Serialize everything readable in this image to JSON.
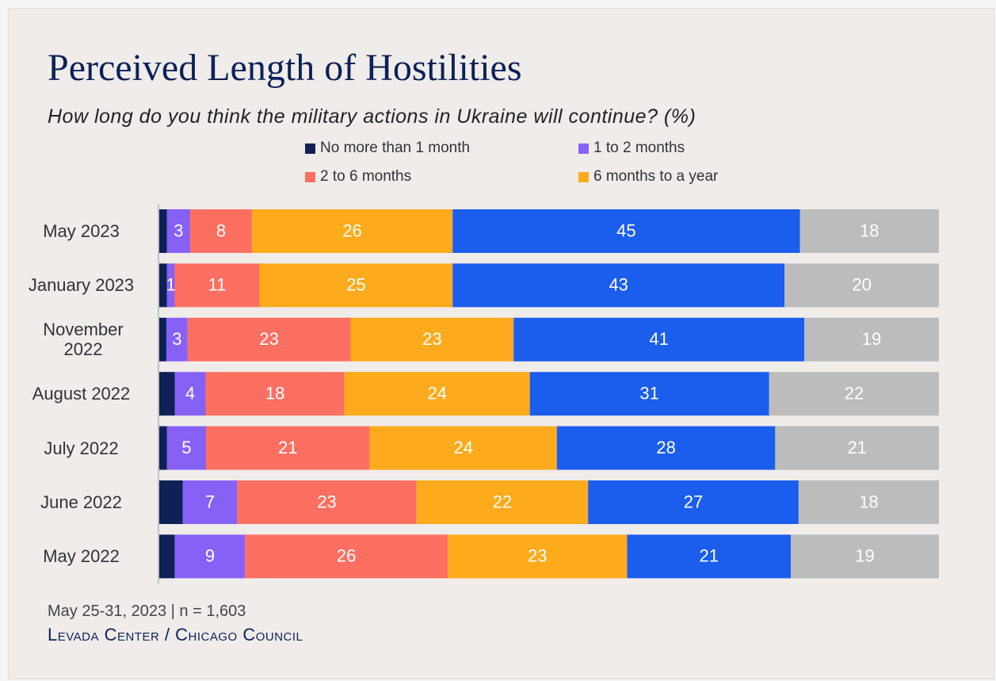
{
  "chart_data": {
    "type": "stacked_bar_horizontal",
    "title": "Perceived Length of Hostilities",
    "subtitle": "How long do you think the military actions in Ukraine will continue? (%)",
    "categories": [
      "May 2023",
      "January 2023",
      "November 2022",
      "August 2022",
      "July 2022",
      "June 2022",
      "May 2022"
    ],
    "series": [
      {
        "name": "No more than 1 month",
        "color": "#0d2157",
        "values": [
          1,
          1,
          1,
          2,
          1,
          3,
          2
        ],
        "labels_shown": false
      },
      {
        "name": "1 to 2 months",
        "color": "#8661f5",
        "values": [
          3,
          1,
          3,
          4,
          5,
          7,
          9
        ]
      },
      {
        "name": "2 to 6 months",
        "color": "#fd6f61",
        "values": [
          8,
          11,
          23,
          18,
          21,
          23,
          26
        ]
      },
      {
        "name": "6 months to a year",
        "color": "#fdab1c",
        "values": [
          26,
          25,
          23,
          24,
          24,
          22,
          23
        ]
      },
      {
        "color": "#1b5ded",
        "values": [
          45,
          43,
          41,
          31,
          28,
          27,
          21
        ]
      },
      {
        "color": "#bcbcbc",
        "values": [
          18,
          20,
          19,
          22,
          21,
          18,
          19
        ]
      }
    ],
    "note": "May 25-31, 2023 | n = 1,603",
    "source": "Levada Center / Chicago Council"
  }
}
